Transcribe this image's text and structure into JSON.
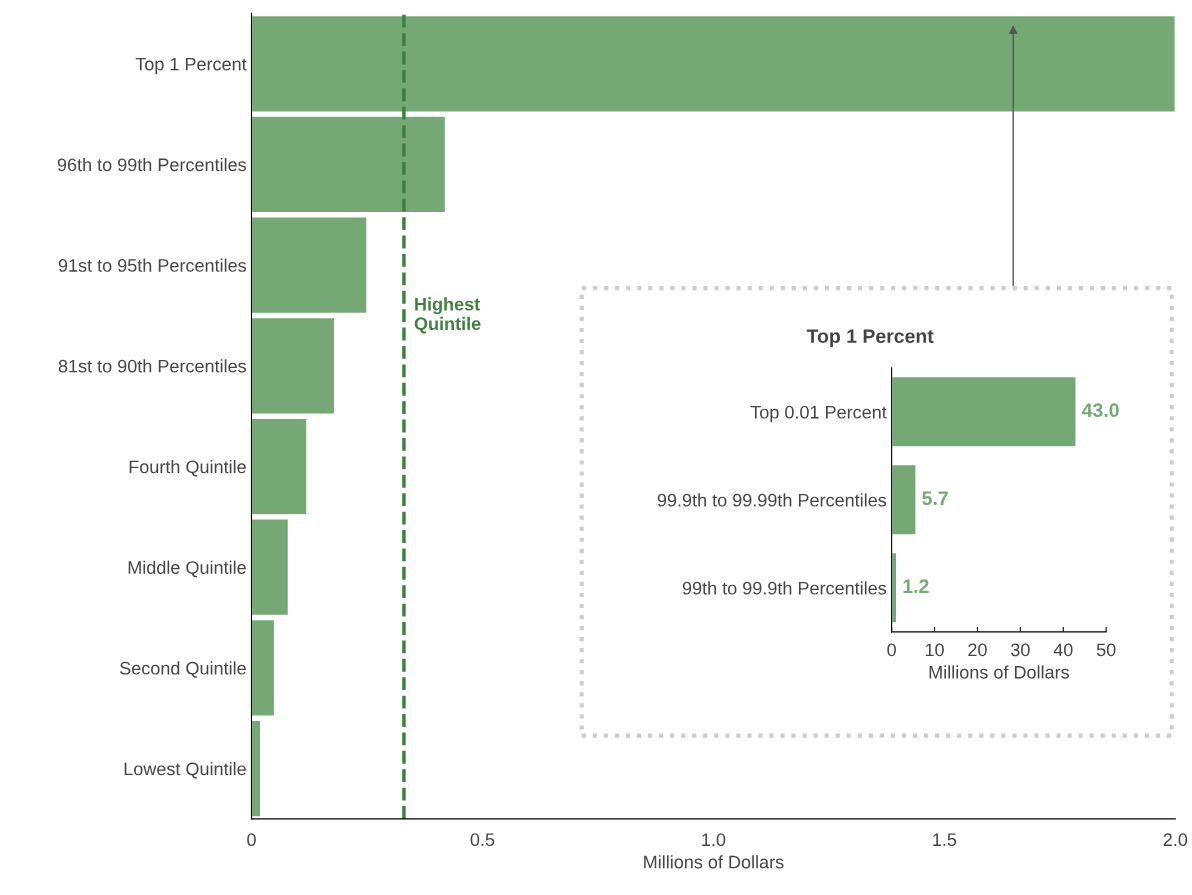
{
  "chart_data": [
    {
      "type": "bar",
      "orientation": "horizontal",
      "xlabel": "Millions of Dollars",
      "categories": [
        "Top 1 Percent",
        "96th to 99th Percentiles",
        "91st to 95th Percentiles",
        "81st to 90th Percentiles",
        "Fourth Quintile",
        "Middle Quintile",
        "Second Quintile",
        "Lowest Quintile"
      ],
      "values": [
        2.0,
        0.42,
        0.25,
        0.18,
        0.12,
        0.08,
        0.05,
        0.02
      ],
      "color": "#76a876",
      "xlim": [
        0,
        2.0
      ],
      "xticks": [
        0,
        0.5,
        {
          "value": 1.0,
          "label": "1.0"
        },
        1.5,
        {
          "value": 2.0,
          "label": "2.0"
        }
      ],
      "ref_lines": [
        {
          "axis": "x",
          "value": 0.33,
          "label": "Highest Quintile",
          "color": "#3f7f3f",
          "line_style": "dashed"
        }
      ],
      "grid": false,
      "legend": false
    },
    {
      "type": "bar",
      "orientation": "horizontal",
      "title": "Top 1 Percent",
      "xlabel": "Millions of Dollars",
      "categories": [
        "Top 0.01 Percent",
        "99.9th to 99.99th Percentiles",
        "99th to 99.9th Percentiles"
      ],
      "values": [
        43.0,
        5.7,
        1.2
      ],
      "value_labels": [
        "43.0",
        "5.7",
        "1.2"
      ],
      "color": "#76a876",
      "xlim": [
        0,
        50
      ],
      "xticks": [
        0,
        10,
        20,
        30,
        40,
        50
      ],
      "grid": false,
      "legend": false
    }
  ]
}
